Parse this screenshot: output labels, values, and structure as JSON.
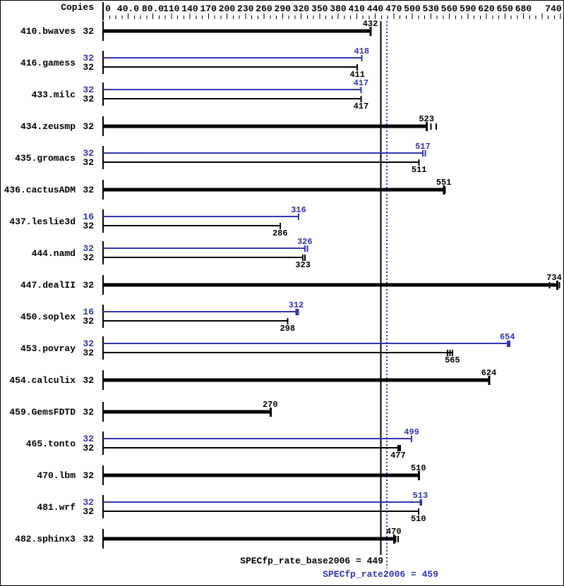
{
  "colors": {
    "peak_blue": "#3333b3",
    "base_black": "#000000",
    "background": "#ffffff"
  },
  "chart_data": {
    "type": "bar",
    "orientation": "horizontal",
    "title": "",
    "xlabel": "",
    "ylabel": "",
    "xlim": [
      0,
      740
    ],
    "grid": false,
    "copies_header": "Copies",
    "minor_tick_step": 10,
    "unlabeled_major_ticks": [
      710
    ],
    "axis_ticks": [
      {
        "value": 0,
        "text": "0"
      },
      {
        "value": 40,
        "text": "40.0"
      },
      {
        "value": 80,
        "text": "80.0"
      },
      {
        "value": 110,
        "text": "110"
      },
      {
        "value": 140,
        "text": "140"
      },
      {
        "value": 170,
        "text": "170"
      },
      {
        "value": 200,
        "text": "200"
      },
      {
        "value": 230,
        "text": "230"
      },
      {
        "value": 260,
        "text": "260"
      },
      {
        "value": 290,
        "text": "290"
      },
      {
        "value": 320,
        "text": "320"
      },
      {
        "value": 350,
        "text": "350"
      },
      {
        "value": 380,
        "text": "380"
      },
      {
        "value": 410,
        "text": "410"
      },
      {
        "value": 440,
        "text": "440"
      },
      {
        "value": 470,
        "text": "470"
      },
      {
        "value": 500,
        "text": "500"
      },
      {
        "value": 530,
        "text": "530"
      },
      {
        "value": 560,
        "text": "560"
      },
      {
        "value": 590,
        "text": "590"
      },
      {
        "value": 620,
        "text": "620"
      },
      {
        "value": 650,
        "text": "650"
      },
      {
        "value": 680,
        "text": "680"
      },
      {
        "value": 740,
        "text": "740"
      }
    ],
    "benchmarks": [
      {
        "name": "410.bwaves",
        "bars": [
          {
            "series": "base",
            "copies": "32",
            "value": 432,
            "run_marks": [],
            "thick_end": false
          }
        ]
      },
      {
        "name": "416.gamess",
        "bars": [
          {
            "series": "peak",
            "copies": "32",
            "value": 418,
            "run_marks": [],
            "thick_end": false
          },
          {
            "series": "base",
            "copies": "32",
            "value": 411,
            "run_marks": [],
            "thick_end": false
          }
        ]
      },
      {
        "name": "433.milc",
        "bars": [
          {
            "series": "peak",
            "copies": "32",
            "value": 417,
            "run_marks": [],
            "thick_end": false
          },
          {
            "series": "base",
            "copies": "32",
            "value": 417,
            "run_marks": [],
            "thick_end": false
          }
        ]
      },
      {
        "name": "434.zeusmp",
        "bars": [
          {
            "series": "base",
            "copies": "32",
            "value": 523,
            "run_marks": [
              530,
              539
            ],
            "thick_end": false
          }
        ]
      },
      {
        "name": "435.gromacs",
        "bars": [
          {
            "series": "peak",
            "copies": "32",
            "value": 517,
            "run_marks": [
              521
            ],
            "thick_end": false
          },
          {
            "series": "base",
            "copies": "32",
            "value": 511,
            "run_marks": [],
            "thick_end": false
          }
        ]
      },
      {
        "name": "436.cactusADM",
        "bars": [
          {
            "series": "base",
            "copies": "32",
            "value": 551,
            "run_marks": [
              553
            ],
            "thick_end": false
          }
        ]
      },
      {
        "name": "437.leslie3d",
        "bars": [
          {
            "series": "peak",
            "copies": "16",
            "value": 316,
            "run_marks": [],
            "thick_end": false
          },
          {
            "series": "base",
            "copies": "32",
            "value": 286,
            "run_marks": [],
            "thick_end": false
          }
        ]
      },
      {
        "name": "444.namd",
        "bars": [
          {
            "series": "peak",
            "copies": "32",
            "value": 326,
            "run_marks": [
              330
            ],
            "thick_end": false
          },
          {
            "series": "base",
            "copies": "32",
            "value": 323,
            "run_marks": [
              326
            ],
            "thick_end": false
          }
        ]
      },
      {
        "name": "447.dealII",
        "bars": [
          {
            "series": "base",
            "copies": "32",
            "value": 734,
            "run_marks": [
              722,
              738
            ],
            "thick_end": false
          }
        ]
      },
      {
        "name": "450.soplex",
        "bars": [
          {
            "series": "peak",
            "copies": "16",
            "value": 312,
            "run_marks": [],
            "thick_end": true
          },
          {
            "series": "base",
            "copies": "32",
            "value": 298,
            "run_marks": [],
            "thick_end": false
          }
        ]
      },
      {
        "name": "453.povray",
        "bars": [
          {
            "series": "peak",
            "copies": "32",
            "value": 654,
            "run_marks": [],
            "thick_end": true
          },
          {
            "series": "base",
            "copies": "32",
            "value": 565,
            "run_marks": [
              557,
              561
            ],
            "thick_end": false
          }
        ]
      },
      {
        "name": "454.calculix",
        "bars": [
          {
            "series": "base",
            "copies": "32",
            "value": 624,
            "run_marks": [],
            "thick_end": false
          }
        ]
      },
      {
        "name": "459.GemsFDTD",
        "bars": [
          {
            "series": "base",
            "copies": "32",
            "value": 270,
            "run_marks": [],
            "thick_end": false
          }
        ]
      },
      {
        "name": "465.tonto",
        "bars": [
          {
            "series": "peak",
            "copies": "32",
            "value": 499,
            "run_marks": [],
            "thick_end": false
          },
          {
            "series": "base",
            "copies": "32",
            "value": 477,
            "run_marks": [],
            "thick_end": true
          }
        ]
      },
      {
        "name": "470.lbm",
        "bars": [
          {
            "series": "base",
            "copies": "32",
            "value": 510,
            "run_marks": [],
            "thick_end": false
          }
        ]
      },
      {
        "name": "481.wrf",
        "bars": [
          {
            "series": "peak",
            "copies": "32",
            "value": 513,
            "run_marks": [
              515
            ],
            "thick_end": false
          },
          {
            "series": "base",
            "copies": "32",
            "value": 510,
            "run_marks": [],
            "thick_end": false
          }
        ]
      },
      {
        "name": "482.sphinx3",
        "bars": [
          {
            "series": "base",
            "copies": "32",
            "value": 470,
            "run_marks": [
              473,
              477
            ],
            "thick_end": false
          }
        ]
      }
    ],
    "reference_lines": [
      {
        "id": "base",
        "label": "SPECfp_rate_base2006 = 449",
        "value": 449,
        "style": "solid",
        "color": "#000000"
      },
      {
        "id": "peak",
        "label": "SPECfp_rate2006 = 459",
        "value": 459,
        "style": "dotted",
        "color": "#3333b3"
      }
    ]
  }
}
